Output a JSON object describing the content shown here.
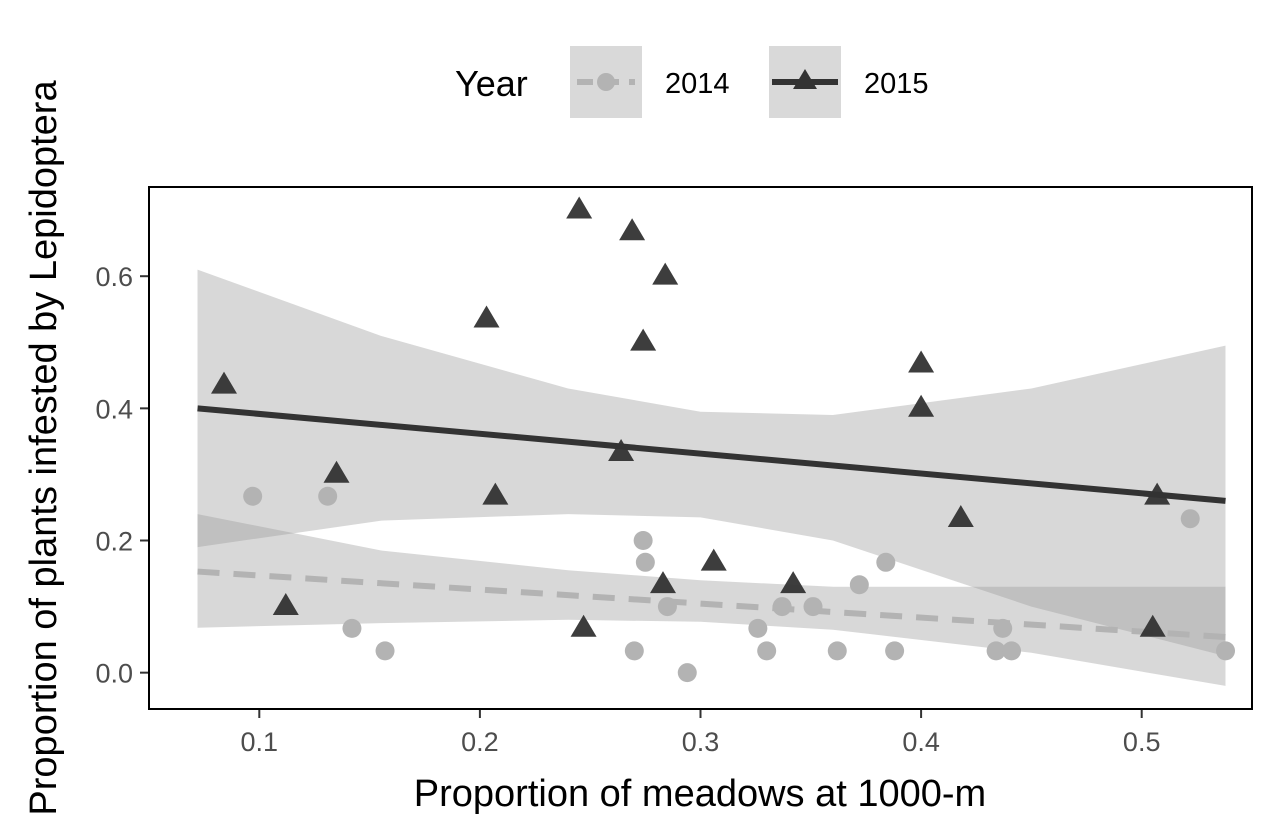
{
  "chart_data": {
    "type": "scatter",
    "xlabel": "Proportion of meadows at 1000-m",
    "ylabel": "Proportion of plants infested by Lepidoptera",
    "xlim": [
      0.05,
      0.55
    ],
    "ylim": [
      -0.055,
      0.735
    ],
    "x_ticks": [
      0.1,
      0.2,
      0.3,
      0.4,
      0.5
    ],
    "y_ticks": [
      0.0,
      0.2,
      0.4,
      0.6
    ],
    "x_tick_labels": [
      "0.1",
      "0.2",
      "0.3",
      "0.4",
      "0.5"
    ],
    "y_tick_labels": [
      "0.0",
      "0.2",
      "0.4",
      "0.6"
    ],
    "grid": false,
    "legend": {
      "title": "Year",
      "position": "top"
    },
    "series": [
      {
        "name": "2014",
        "marker": "circle",
        "line_style": "dashed",
        "color": "#b3b3b3",
        "trend": {
          "x": [
            0.072,
            0.538
          ],
          "y": [
            0.153,
            0.054
          ]
        },
        "ci_band": {
          "x": [
            0.072,
            0.155,
            0.24,
            0.3,
            0.36,
            0.45,
            0.538
          ],
          "lower": [
            0.068,
            0.075,
            0.08,
            0.077,
            0.065,
            0.03,
            -0.02
          ],
          "upper": [
            0.24,
            0.185,
            0.155,
            0.14,
            0.13,
            0.13,
            0.13
          ]
        },
        "points": [
          [
            0.097,
            0.267
          ],
          [
            0.131,
            0.267
          ],
          [
            0.142,
            0.067
          ],
          [
            0.157,
            0.033
          ],
          [
            0.27,
            0.033
          ],
          [
            0.274,
            0.2
          ],
          [
            0.275,
            0.167
          ],
          [
            0.285,
            0.1
          ],
          [
            0.294,
            0.0
          ],
          [
            0.326,
            0.067
          ],
          [
            0.33,
            0.033
          ],
          [
            0.337,
            0.1
          ],
          [
            0.351,
            0.1
          ],
          [
            0.362,
            0.033
          ],
          [
            0.372,
            0.133
          ],
          [
            0.384,
            0.167
          ],
          [
            0.388,
            0.033
          ],
          [
            0.434,
            0.033
          ],
          [
            0.437,
            0.067
          ],
          [
            0.441,
            0.033
          ],
          [
            0.522,
            0.233
          ],
          [
            0.538,
            0.033
          ]
        ]
      },
      {
        "name": "2015",
        "marker": "triangle",
        "line_style": "solid",
        "color": "#333333",
        "trend": {
          "x": [
            0.072,
            0.538
          ],
          "y": [
            0.4,
            0.26
          ]
        },
        "ci_band": {
          "x": [
            0.072,
            0.155,
            0.24,
            0.3,
            0.36,
            0.45,
            0.538
          ],
          "lower": [
            0.19,
            0.23,
            0.24,
            0.235,
            0.2,
            0.1,
            0.025
          ],
          "upper": [
            0.61,
            0.51,
            0.43,
            0.395,
            0.39,
            0.43,
            0.495
          ]
        },
        "points": [
          [
            0.084,
            0.435
          ],
          [
            0.112,
            0.1
          ],
          [
            0.135,
            0.3
          ],
          [
            0.203,
            0.535
          ],
          [
            0.207,
            0.267
          ],
          [
            0.245,
            0.7
          ],
          [
            0.247,
            0.067
          ],
          [
            0.264,
            0.333
          ],
          [
            0.269,
            0.667
          ],
          [
            0.274,
            0.5
          ],
          [
            0.283,
            0.133
          ],
          [
            0.284,
            0.6
          ],
          [
            0.306,
            0.167
          ],
          [
            0.342,
            0.133
          ],
          [
            0.4,
            0.467
          ],
          [
            0.4,
            0.4
          ],
          [
            0.418,
            0.233
          ],
          [
            0.505,
            0.067
          ],
          [
            0.507,
            0.267
          ]
        ]
      }
    ]
  }
}
